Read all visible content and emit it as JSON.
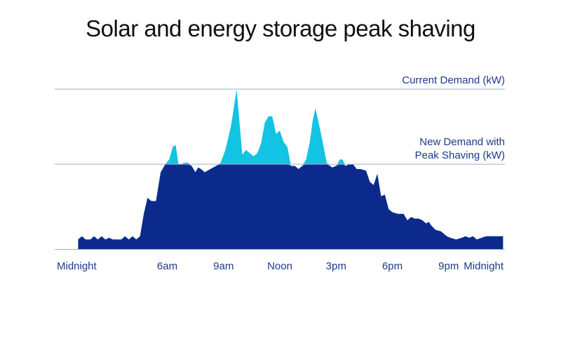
{
  "chart_data": {
    "type": "area",
    "title": "Solar and energy storage peak shaving",
    "x_unit": "hour of day",
    "xlim": [
      0,
      24
    ],
    "ylim": [
      0,
      100
    ],
    "x_ticks": [
      {
        "x": 0,
        "label": "Midnight"
      },
      {
        "x": 6,
        "label": "6am"
      },
      {
        "x": 9,
        "label": "9am"
      },
      {
        "x": 12,
        "label": "Noon"
      },
      {
        "x": 15,
        "label": "3pm"
      },
      {
        "x": 18,
        "label": "6pm"
      },
      {
        "x": 21,
        "label": "9pm"
      },
      {
        "x": 24,
        "label": "Midnight"
      }
    ],
    "reference_lines": [
      {
        "value": 100,
        "label": "Current Demand (kW)"
      },
      {
        "value": 53,
        "label_lines": [
          "New Demand with",
          "Peak Shaving (kW)"
        ]
      }
    ],
    "colors": {
      "demand": "#0b2a8c",
      "shaved_peak": "#12c3e3",
      "reference_line": "#9ab0cc",
      "label": "#1e3a8a"
    },
    "series": [
      {
        "x": [
          1.25,
          1.45,
          1.65,
          1.9,
          2.1,
          2.3,
          2.5,
          2.7,
          2.9,
          3.1,
          3.3,
          3.55,
          3.75,
          3.95,
          4.15,
          4.35,
          4.55,
          4.75,
          4.95,
          5.15,
          5.4,
          5.65,
          5.9,
          6.1,
          6.3,
          6.45,
          6.6,
          6.75,
          6.9,
          7.0,
          7.1,
          7.3,
          7.5,
          7.65,
          7.8,
          8.0,
          8.3,
          8.6,
          8.85,
          9.1,
          9.4,
          9.7,
          10.0,
          10.2,
          10.4,
          10.6,
          10.8,
          11.0,
          11.2,
          11.4,
          11.6,
          11.8,
          12.0,
          12.2,
          12.4,
          12.6,
          12.8,
          13.0,
          13.2,
          13.4,
          13.6,
          13.75,
          13.9,
          14.05,
          14.2,
          14.5,
          14.8,
          15.0,
          15.2,
          15.35,
          15.5,
          15.7,
          15.9,
          16.1,
          16.3,
          16.6,
          16.8,
          17.0,
          17.2,
          17.4,
          17.6,
          17.8,
          18.0,
          18.3,
          18.6,
          18.8,
          19.0,
          19.2,
          19.4,
          19.6,
          19.8,
          19.95,
          20.05,
          20.3,
          20.6,
          20.9,
          21.1,
          21.4,
          21.7,
          21.9,
          22.1,
          22.3,
          22.5,
          22.75,
          23.0,
          23.2,
          23.4,
          23.6,
          23.8,
          23.9
        ],
        "y": [
          6,
          8,
          6,
          6,
          8,
          6,
          8,
          6,
          7,
          6,
          6,
          6,
          8,
          6,
          8,
          6,
          8,
          22,
          32,
          30,
          30,
          48,
          53,
          56,
          64,
          65,
          53,
          53,
          54,
          54,
          54,
          52,
          48,
          51,
          50,
          48,
          50,
          52,
          54,
          62,
          77,
          100,
          59,
          62,
          60,
          58,
          60,
          66,
          79,
          83,
          83,
          72,
          74,
          67,
          64,
          52,
          52,
          50,
          52,
          56,
          67,
          80,
          88,
          80,
          72,
          54,
          51,
          52,
          56,
          56,
          52,
          53,
          53,
          50,
          50,
          49,
          42,
          40,
          47,
          33,
          34,
          25,
          23,
          22,
          22,
          18,
          20,
          19,
          19,
          18,
          16,
          17,
          15,
          12,
          11,
          8,
          7,
          6,
          7,
          8,
          7,
          8,
          6,
          7,
          8,
          8,
          8,
          8,
          8,
          8
        ],
        "shaved_cap": 53
      }
    ]
  }
}
